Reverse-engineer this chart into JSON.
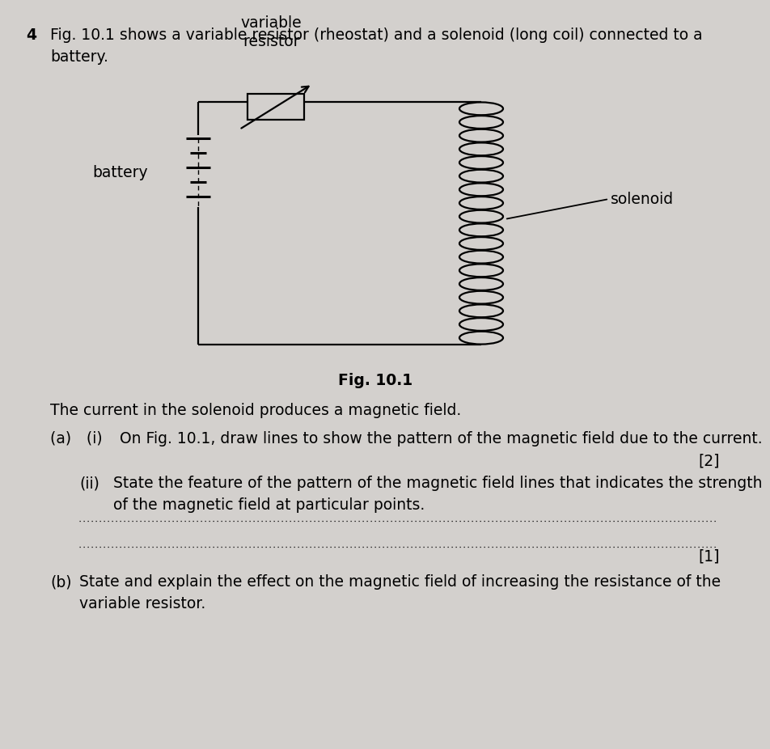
{
  "bg_color": "#d3d0cd",
  "title_num": "4",
  "title_text": "Fig. 10.1 shows a variable resistor (rheostat) and a solenoid (long coil) connected to a\nbattery.",
  "fig_label": "Fig. 10.1",
  "body_text_1": "The current in the solenoid produces a magnetic field.",
  "body_a_i_prefix": "(a) (i) ",
  "body_a_i": "On Fig. 10.1, draw lines to show the pattern of the magnetic field due to the current.",
  "body_a_i_mark": "[2]",
  "body_a_ii_label": "(ii)",
  "body_a_ii": "State the feature of the pattern of the magnetic field lines that indicates the strength\nof the magnetic field at particular points.",
  "body_a_ii_mark": "[1]",
  "body_b_prefix": "(b)",
  "body_b": "State and explain the effect on the magnetic field of increasing the resistance of the\nvariable resistor.",
  "label_variable_resistor": "variable\nresistor",
  "label_battery": "battery",
  "label_solenoid": "solenoid",
  "font_size": 13.5
}
